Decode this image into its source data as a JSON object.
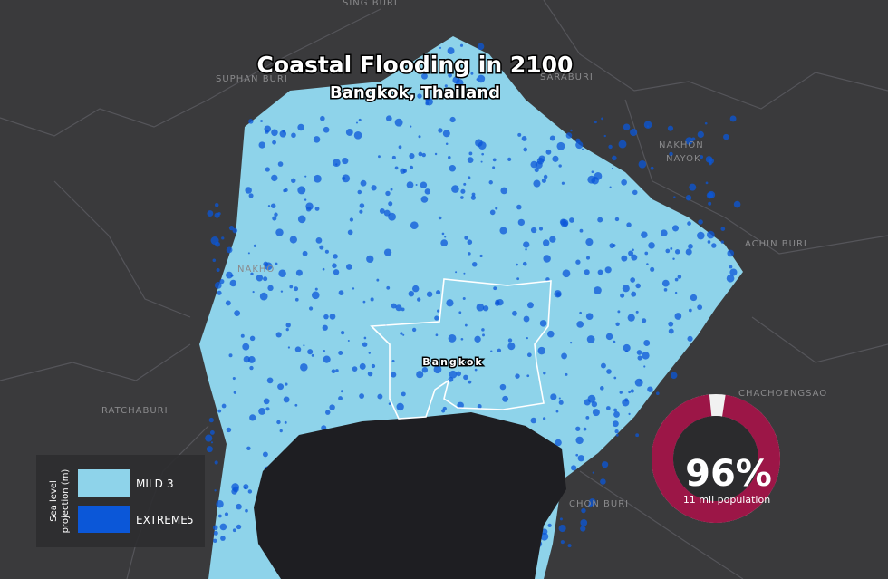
{
  "title": "Coastal Flooding in 2100",
  "subtitle": "Bangkok, Thailand",
  "city": "Bangkok",
  "places": [
    "SING BURI",
    "SUPHAN BURI",
    "SARABURI",
    "NAKHON",
    "NAYOK",
    "ACHIN BURI",
    "NAKHO",
    "RATCHABURI",
    "CHACHOENGSAO",
    "CHON BURI"
  ],
  "legend": {
    "title": [
      "Sea level",
      "projection (m)"
    ],
    "items": [
      {
        "label": "MILD",
        "value": 3,
        "color": "#8ed3ea"
      },
      {
        "label": "EXTREME",
        "value": 5,
        "color": "#0b57d8"
      }
    ]
  },
  "stat": {
    "value": 96,
    "value_label": "96%",
    "caption": "11 mil population"
  }
}
